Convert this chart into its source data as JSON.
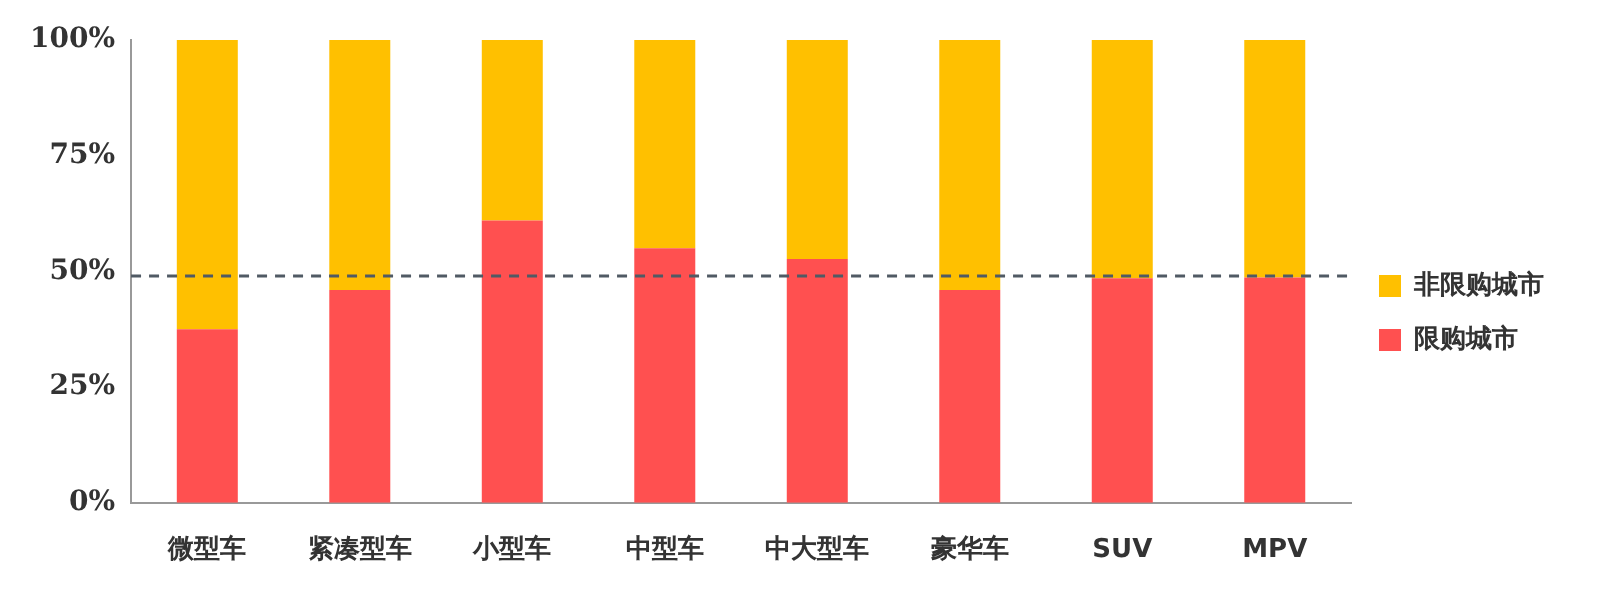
{
  "chart_data": {
    "type": "bar",
    "stacked": true,
    "categories": [
      "微型车",
      "紧凑型车",
      "小型车",
      "中型车",
      "中大型车",
      "豪华车",
      "SUV",
      "MPV"
    ],
    "series": [
      {
        "name": "限购城市",
        "color": "#ff5050",
        "values": [
          37.5,
          46,
          61,
          55,
          52.7,
          46,
          48.5,
          48.7
        ]
      },
      {
        "name": "非限购城市",
        "color": "#ffc000",
        "values": [
          62.5,
          54,
          39,
          45,
          47.3,
          54,
          51.5,
          51.3
        ]
      }
    ],
    "ylim": [
      0,
      100
    ],
    "yticks": [
      {
        "value": 0,
        "label": "0%"
      },
      {
        "value": 25,
        "label": "25%"
      },
      {
        "value": 50,
        "label": "50%"
      },
      {
        "value": 75,
        "label": "75%"
      },
      {
        "value": 100,
        "label": "100%"
      }
    ],
    "ref_lines": [
      {
        "axis": "y",
        "value": 49,
        "color": "#505a64",
        "line_style": "dashed"
      }
    ],
    "grid": false,
    "legend": "right"
  }
}
